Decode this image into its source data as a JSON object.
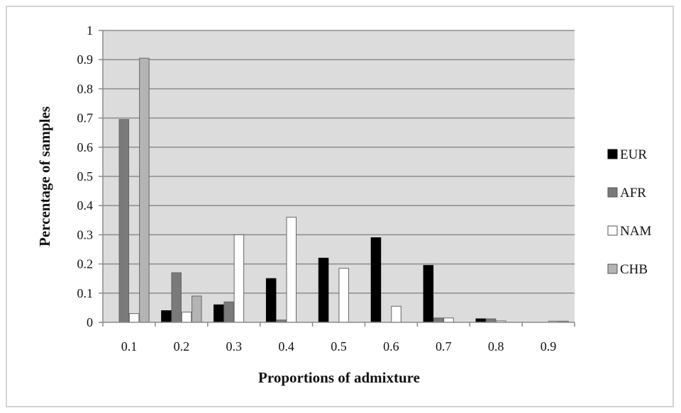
{
  "chart_data": {
    "type": "bar",
    "xlabel": "Proportions of admixture",
    "ylabel": "Percentage of samples",
    "categories": [
      "0.1",
      "0.2",
      "0.3",
      "0.4",
      "0.5",
      "0.6",
      "0.7",
      "0.8",
      "0.9"
    ],
    "ylim": [
      0,
      1
    ],
    "yticks": [
      "0",
      "0.1",
      "0.2",
      "0.3",
      "0.4",
      "0.5",
      "0.6",
      "0.7",
      "0.8",
      "0.9",
      "1"
    ],
    "grid": true,
    "legend_position": "right",
    "series": [
      {
        "name": "EUR",
        "color": "#000000",
        "values": [
          0.0,
          0.04,
          0.06,
          0.15,
          0.22,
          0.29,
          0.195,
          0.012,
          0.0
        ]
      },
      {
        "name": "AFR",
        "color": "#7a7a7a",
        "values": [
          0.695,
          0.17,
          0.07,
          0.008,
          0.0,
          0.0,
          0.015,
          0.012,
          0.0
        ]
      },
      {
        "name": "NAM",
        "color": "#ffffff",
        "values": [
          0.03,
          0.035,
          0.3,
          0.36,
          0.185,
          0.055,
          0.015,
          0.005,
          0.004
        ]
      },
      {
        "name": "CHB",
        "color": "#b4b4b4",
        "values": [
          0.905,
          0.09,
          0.0,
          0.0,
          0.0,
          0.0,
          0.0,
          0.0,
          0.004
        ]
      }
    ]
  }
}
